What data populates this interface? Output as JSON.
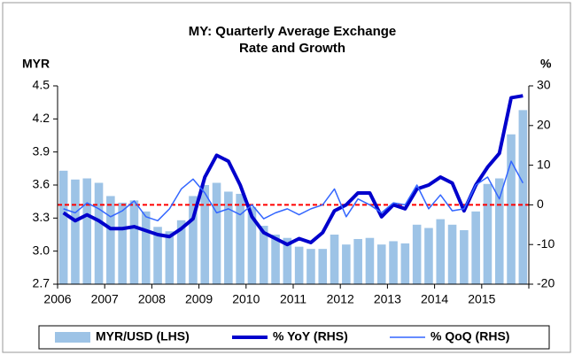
{
  "chart_data": {
    "type": "bar-line",
    "title": [
      "MY: Quarterly Average Exchange",
      "Rate and Growth"
    ],
    "y_label": "MYR",
    "y2_label": "%",
    "categories": [
      "2006",
      null,
      null,
      null,
      "2007",
      null,
      null,
      null,
      "2008",
      null,
      null,
      null,
      "2009",
      null,
      null,
      null,
      "2010",
      null,
      null,
      null,
      "2011",
      null,
      null,
      null,
      "2012",
      null,
      null,
      null,
      "2013",
      null,
      null,
      null,
      "2014",
      null,
      null,
      null,
      "2015",
      null,
      null,
      null
    ],
    "series": [
      {
        "name": "MYR/USD (LHS)",
        "type": "bar",
        "color": "#9dc3e6",
        "axis": "y",
        "values": [
          3.73,
          3.65,
          3.66,
          3.62,
          3.5,
          3.44,
          3.46,
          3.36,
          3.22,
          3.18,
          3.28,
          3.5,
          3.6,
          3.62,
          3.54,
          3.52,
          3.4,
          3.23,
          3.15,
          3.12,
          3.04,
          3.02,
          3.02,
          3.15,
          3.06,
          3.11,
          3.12,
          3.06,
          3.09,
          3.07,
          3.24,
          3.21,
          3.29,
          3.24,
          3.19,
          3.36,
          3.61,
          3.66,
          4.06,
          4.28
        ]
      },
      {
        "name": "% YoY (RHS)",
        "type": "line",
        "color": "#0000cc",
        "width": 4,
        "axis": "y2",
        "values": [
          -2,
          -4,
          -2.5,
          -4,
          -6,
          -6,
          -5.5,
          -6.5,
          -7.5,
          -8,
          -6,
          -3.5,
          7,
          12.5,
          11,
          5,
          -3,
          -7,
          -8.5,
          -10,
          -8.5,
          -9.5,
          -7,
          -1.5,
          0,
          3,
          3,
          -3,
          0,
          -1,
          4,
          5,
          7,
          5.5,
          -1.5,
          5,
          9.5,
          13,
          27,
          27.5
        ]
      },
      {
        "name": "% QoQ (RHS)",
        "type": "line",
        "color": "#3366ff",
        "width": 1.5,
        "axis": "y2",
        "values": [
          -1,
          -2,
          0.5,
          -1,
          -3,
          -1.5,
          1,
          -3,
          -4,
          -1,
          4,
          6.5,
          3,
          -2,
          -1,
          -2.5,
          0,
          -3.5,
          -2,
          -1,
          -2.5,
          -1,
          0,
          4,
          -3,
          1.5,
          0,
          -2,
          0.5,
          0,
          5,
          -1,
          2.5,
          -1.5,
          -1,
          5,
          7,
          1.5,
          11,
          5.5
        ]
      }
    ],
    "ylim": [
      2.7,
      4.5
    ],
    "yticks": [
      {
        "value": 2.7,
        "label": "2.7"
      },
      {
        "value": 3.0,
        "label": "3.0"
      },
      {
        "value": 3.3,
        "label": "3.3"
      },
      {
        "value": 3.6,
        "label": "3.6"
      },
      {
        "value": 3.9,
        "label": "3.9"
      },
      {
        "value": 4.2,
        "label": "4.2"
      },
      {
        "value": 4.5,
        "label": "4.5"
      }
    ],
    "y2lim": [
      -20,
      30
    ],
    "y2ticks": [
      -20,
      -10,
      0,
      10,
      20,
      30
    ],
    "reference_line": {
      "value": 0,
      "axis": "y2",
      "color": "#ff0000"
    },
    "legend": "bottom"
  }
}
